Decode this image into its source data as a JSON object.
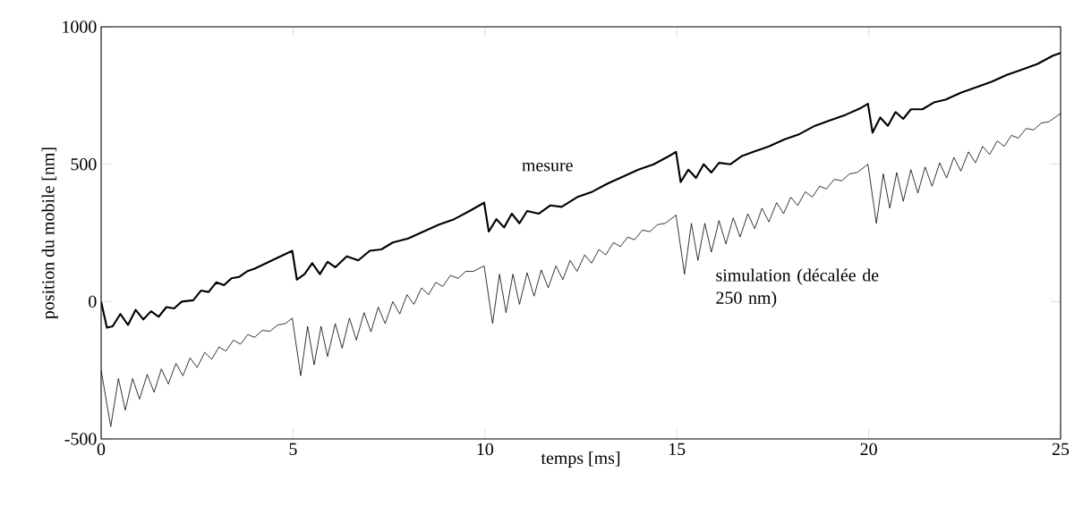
{
  "chart_data": {
    "type": "line",
    "xlabel": "temps [ms]",
    "ylabel": "position du mobile [nm]",
    "xlim": [
      0,
      25
    ],
    "ylim": [
      -500,
      1000
    ],
    "xticks": [
      0,
      5,
      10,
      15,
      20,
      25
    ],
    "yticks": [
      -500,
      0,
      500,
      1000
    ],
    "grid": false,
    "legend": false,
    "marker": "none",
    "line_style": "solid",
    "series": [
      {
        "name": "mesure",
        "color": "#000000",
        "x": [
          0,
          0.15,
          0.3,
          0.5,
          0.7,
          0.9,
          1.1,
          1.3,
          1.5,
          1.7,
          1.9,
          2.1,
          2.4,
          2.6,
          2.8,
          3.0,
          3.2,
          3.4,
          3.6,
          3.8,
          4.0,
          4.3,
          4.6,
          4.98,
          5.1,
          5.3,
          5.5,
          5.7,
          5.9,
          6.1,
          6.4,
          6.7,
          7.0,
          7.3,
          7.6,
          8.0,
          8.4,
          8.8,
          9.2,
          9.6,
          9.98,
          10.1,
          10.3,
          10.5,
          10.7,
          10.9,
          11.1,
          11.4,
          11.7,
          12.0,
          12.4,
          12.8,
          13.2,
          13.6,
          14.0,
          14.4,
          14.8,
          14.98,
          15.1,
          15.3,
          15.5,
          15.7,
          15.9,
          16.1,
          16.4,
          16.7,
          17.0,
          17.4,
          17.8,
          18.2,
          18.6,
          19.0,
          19.4,
          19.8,
          19.98,
          20.1,
          20.3,
          20.5,
          20.7,
          20.9,
          21.1,
          21.4,
          21.7,
          22.0,
          22.4,
          22.8,
          23.2,
          23.6,
          24.0,
          24.4,
          24.8,
          25
        ],
        "values": [
          0,
          -95,
          -90,
          -45,
          -85,
          -30,
          -65,
          -35,
          -55,
          -20,
          -25,
          0,
          5,
          40,
          35,
          70,
          60,
          85,
          90,
          110,
          120,
          140,
          160,
          185,
          80,
          100,
          140,
          100,
          145,
          125,
          165,
          150,
          185,
          190,
          215,
          230,
          255,
          280,
          300,
          330,
          360,
          255,
          300,
          270,
          320,
          285,
          330,
          320,
          350,
          345,
          380,
          400,
          430,
          455,
          480,
          500,
          530,
          545,
          435,
          480,
          450,
          500,
          470,
          505,
          500,
          530,
          545,
          565,
          590,
          610,
          640,
          660,
          680,
          705,
          720,
          615,
          670,
          640,
          690,
          665,
          700,
          700,
          725,
          735,
          760,
          780,
          800,
          825,
          845,
          865,
          895,
          905
        ]
      },
      {
        "name": "simulation (décalée de 250 nm)",
        "color": "#000000",
        "x": [
          0,
          0.25,
          0.45,
          0.63,
          0.82,
          1.0,
          1.2,
          1.38,
          1.57,
          1.75,
          1.95,
          2.13,
          2.32,
          2.5,
          2.7,
          2.88,
          3.07,
          3.25,
          3.45,
          3.63,
          3.82,
          4.0,
          4.2,
          4.4,
          4.6,
          4.8,
          4.98,
          5.2,
          5.38,
          5.55,
          5.73,
          5.9,
          6.1,
          6.28,
          6.47,
          6.65,
          6.85,
          7.03,
          7.22,
          7.4,
          7.6,
          7.78,
          7.97,
          8.15,
          8.35,
          8.53,
          8.72,
          8.9,
          9.1,
          9.3,
          9.5,
          9.7,
          9.98,
          10.2,
          10.38,
          10.55,
          10.73,
          10.9,
          11.1,
          11.28,
          11.47,
          11.65,
          11.85,
          12.03,
          12.22,
          12.4,
          12.6,
          12.78,
          12.97,
          13.15,
          13.35,
          13.53,
          13.72,
          13.9,
          14.1,
          14.3,
          14.5,
          14.7,
          14.98,
          15.2,
          15.38,
          15.55,
          15.73,
          15.9,
          16.1,
          16.28,
          16.47,
          16.65,
          16.85,
          17.03,
          17.22,
          17.4,
          17.6,
          17.78,
          17.97,
          18.15,
          18.35,
          18.53,
          18.72,
          18.9,
          19.1,
          19.3,
          19.5,
          19.7,
          19.98,
          20.2,
          20.38,
          20.55,
          20.73,
          20.9,
          21.1,
          21.28,
          21.47,
          21.65,
          21.85,
          22.03,
          22.22,
          22.4,
          22.6,
          22.78,
          22.97,
          23.15,
          23.35,
          23.53,
          23.72,
          23.9,
          24.1,
          24.3,
          24.5,
          24.7,
          25
        ],
        "values": [
          -250,
          -455,
          -280,
          -395,
          -280,
          -355,
          -265,
          -330,
          -245,
          -300,
          -225,
          -270,
          -205,
          -240,
          -185,
          -210,
          -165,
          -180,
          -140,
          -155,
          -120,
          -130,
          -105,
          -108,
          -85,
          -80,
          -60,
          -270,
          -90,
          -230,
          -90,
          -200,
          -80,
          -170,
          -60,
          -140,
          -40,
          -110,
          -20,
          -80,
          0,
          -45,
          25,
          -10,
          50,
          25,
          70,
          55,
          95,
          85,
          110,
          110,
          130,
          -80,
          100,
          -40,
          100,
          -10,
          105,
          20,
          115,
          50,
          130,
          80,
          150,
          110,
          170,
          140,
          190,
          170,
          215,
          200,
          235,
          225,
          260,
          255,
          280,
          285,
          315,
          100,
          285,
          150,
          285,
          180,
          295,
          210,
          305,
          235,
          320,
          265,
          340,
          290,
          360,
          320,
          380,
          350,
          400,
          380,
          420,
          410,
          445,
          440,
          465,
          470,
          500,
          285,
          465,
          340,
          470,
          365,
          480,
          395,
          490,
          420,
          505,
          450,
          525,
          475,
          545,
          505,
          565,
          535,
          585,
          565,
          605,
          595,
          630,
          625,
          650,
          655,
          685
        ]
      }
    ]
  }
}
